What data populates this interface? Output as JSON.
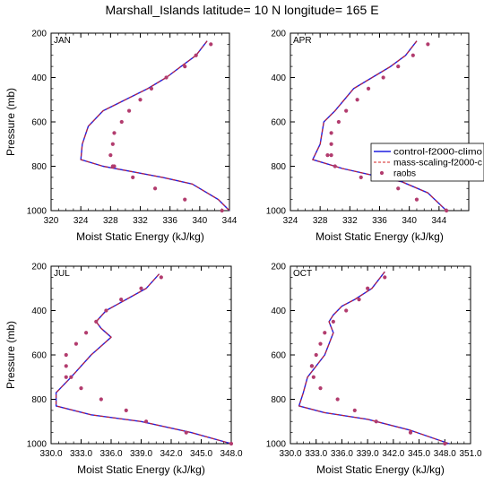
{
  "figure": {
    "title": "Marshall_Islands  latitude= 10 N longitude= 165 E",
    "xlabel": "Moist Static Energy (kJ/kg)",
    "ylabel": "Pressure (mb)",
    "colors": {
      "control": "#1f1fe0",
      "mass": "#d42020",
      "raobs": "#b23c6e"
    }
  },
  "legend": {
    "placement": "right of APR panel",
    "entries": [
      {
        "label": "control-f2000-climo",
        "style": "solid-line"
      },
      {
        "label": "mass-scaling-f2000-c",
        "style": "dashed-line"
      },
      {
        "label": "raobs",
        "style": "marker"
      }
    ]
  },
  "chart_data": [
    {
      "type": "line",
      "panel_label": "JAN",
      "xlim": [
        320,
        344
      ],
      "ylim": [
        1000,
        200
      ],
      "xticks": [
        320,
        324,
        328,
        332,
        336,
        340,
        344
      ],
      "xtick_labels": [
        "320",
        "324",
        "328",
        "332",
        "336",
        "340",
        "344"
      ],
      "yticks": [
        200,
        400,
        600,
        800,
        1000
      ],
      "ytick_labels": [
        "200",
        "400",
        "600",
        "800",
        "1000"
      ],
      "series": [
        {
          "name": "control-f2000-climo",
          "style": "line",
          "x": [
            341.0,
            339.5,
            337.5,
            335.5,
            333.0,
            330.0,
            327.0,
            325.0,
            324.2,
            324.0,
            327.0,
            331.0,
            335.0,
            339.0,
            342.5,
            344.0
          ],
          "y": [
            235,
            300,
            350,
            400,
            450,
            500,
            550,
            620,
            700,
            770,
            800,
            825,
            850,
            880,
            950,
            1000
          ]
        },
        {
          "name": "mass-scaling-f2000-c",
          "style": "dashed",
          "x": [
            341.0,
            339.5,
            337.5,
            335.5,
            333.0,
            330.0,
            327.0,
            325.0,
            324.2,
            324.0,
            327.0,
            331.0,
            335.0,
            339.0,
            342.5,
            344.0
          ],
          "y": [
            235,
            300,
            350,
            400,
            450,
            500,
            550,
            620,
            700,
            770,
            800,
            825,
            850,
            880,
            950,
            1000
          ]
        },
        {
          "name": "raobs",
          "style": "marker",
          "x": [
            341.5,
            339.5,
            338.0,
            335.5,
            333.5,
            332.0,
            330.5,
            329.5,
            328.5,
            328.3,
            328.0,
            328.3,
            328.5,
            331.0,
            334.0,
            338.0,
            343.0
          ],
          "y": [
            250,
            300,
            350,
            400,
            450,
            500,
            550,
            600,
            650,
            700,
            750,
            800,
            800,
            850,
            900,
            950,
            1000
          ]
        }
      ]
    },
    {
      "type": "line",
      "panel_label": "APR",
      "xlim": [
        324,
        348
      ],
      "ylim": [
        1000,
        200
      ],
      "xticks": [
        324,
        328,
        332,
        336,
        340,
        344,
        348
      ],
      "xtick_labels": [
        "324",
        "328",
        "332",
        "336",
        "340",
        "344",
        ""
      ],
      "yticks": [
        200,
        400,
        600,
        800,
        1000
      ],
      "ytick_labels": [
        "200",
        "400",
        "600",
        "800",
        "1000"
      ],
      "series": [
        {
          "name": "control-f2000-climo",
          "style": "line",
          "x": [
            341.0,
            339.5,
            337.5,
            335.0,
            332.5,
            330.0,
            328.5,
            328.0,
            327.0,
            331.0,
            335.0,
            339.0,
            342.5,
            345.0
          ],
          "y": [
            235,
            300,
            350,
            400,
            450,
            550,
            600,
            700,
            770,
            810,
            840,
            870,
            920,
            1000
          ]
        },
        {
          "name": "mass-scaling-f2000-c",
          "style": "dashed",
          "x": [
            341.0,
            339.5,
            337.5,
            335.0,
            332.5,
            330.0,
            328.5,
            328.0,
            327.0,
            331.0,
            335.0,
            339.0,
            342.5,
            345.0
          ],
          "y": [
            235,
            300,
            350,
            400,
            450,
            550,
            600,
            700,
            770,
            810,
            840,
            870,
            920,
            1000
          ]
        },
        {
          "name": "raobs",
          "style": "marker",
          "x": [
            342.5,
            340.5,
            338.5,
            336.5,
            334.5,
            333.0,
            331.5,
            330.5,
            329.5,
            329.5,
            329.0,
            329.5,
            330.0,
            333.5,
            338.5,
            341.0,
            345.0
          ],
          "y": [
            250,
            300,
            350,
            400,
            450,
            500,
            550,
            600,
            650,
            700,
            750,
            750,
            800,
            850,
            900,
            950,
            1000
          ]
        }
      ]
    },
    {
      "type": "line",
      "panel_label": "JUL",
      "xlim": [
        330,
        348
      ],
      "ylim": [
        1000,
        200
      ],
      "xticks": [
        330,
        333,
        336,
        339,
        342,
        345,
        348
      ],
      "xtick_labels": [
        "330.0",
        "333.0",
        "336.0",
        "339.0",
        "342.0",
        "345.0",
        "348.0"
      ],
      "yticks": [
        200,
        400,
        600,
        800,
        1000
      ],
      "ytick_labels": [
        "200",
        "400",
        "600",
        "800",
        "1000"
      ],
      "series": [
        {
          "name": "control-f2000-climo",
          "style": "line",
          "x": [
            340.8,
            339.5,
            337.5,
            335.5,
            334.5,
            335.0,
            336.0,
            334.0,
            332.0,
            330.5,
            330.5,
            334.0,
            339.0,
            344.0,
            348.0
          ],
          "y": [
            235,
            300,
            350,
            400,
            450,
            480,
            520,
            600,
            700,
            770,
            830,
            870,
            900,
            950,
            1000
          ]
        },
        {
          "name": "mass-scaling-f2000-c",
          "style": "dashed",
          "x": [
            340.8,
            339.5,
            337.5,
            335.5,
            334.5,
            335.0,
            336.0,
            334.0,
            332.0,
            330.5,
            330.5,
            334.0,
            339.0,
            344.0,
            348.0
          ],
          "y": [
            235,
            300,
            350,
            400,
            450,
            480,
            520,
            600,
            700,
            770,
            830,
            870,
            900,
            950,
            1000
          ]
        },
        {
          "name": "raobs",
          "style": "marker",
          "x": [
            341.0,
            339.0,
            337.0,
            335.5,
            334.5,
            333.5,
            332.5,
            331.5,
            331.5,
            331.5,
            332.0,
            333.0,
            335.0,
            337.5,
            339.5,
            343.5,
            348.0
          ],
          "y": [
            250,
            300,
            350,
            400,
            450,
            500,
            550,
            600,
            650,
            700,
            700,
            750,
            800,
            850,
            900,
            950,
            1000
          ]
        }
      ]
    },
    {
      "type": "line",
      "panel_label": "OCT",
      "xlim": [
        330,
        351
      ],
      "ylim": [
        1000,
        200
      ],
      "xticks": [
        330,
        333,
        336,
        339,
        342,
        345,
        348,
        351
      ],
      "xtick_labels": [
        "330.0",
        "333.0",
        "336.0",
        "339.0",
        "342.0",
        "345.0",
        "348.0",
        "351.0"
      ],
      "yticks": [
        200,
        400,
        600,
        800,
        1000
      ],
      "ytick_labels": [
        "200",
        "400",
        "600",
        "800",
        "1000"
      ],
      "series": [
        {
          "name": "control-f2000-climo",
          "style": "line",
          "x": [
            341.0,
            339.5,
            337.5,
            336.0,
            335.0,
            334.5,
            335.0,
            334.0,
            333.0,
            332.0,
            331.5,
            331.0,
            334.0,
            339.0,
            344.0,
            348.5
          ],
          "y": [
            225,
            300,
            350,
            380,
            420,
            450,
            500,
            600,
            650,
            700,
            770,
            830,
            860,
            890,
            940,
            1000
          ]
        },
        {
          "name": "mass-scaling-f2000-c",
          "style": "dashed",
          "x": [
            341.0,
            339.5,
            337.5,
            336.0,
            335.0,
            334.5,
            335.0,
            334.0,
            333.0,
            332.0,
            331.5,
            331.0,
            334.0,
            339.0,
            344.0,
            348.5
          ],
          "y": [
            225,
            300,
            350,
            380,
            420,
            450,
            500,
            600,
            650,
            700,
            770,
            830,
            860,
            890,
            940,
            1000
          ]
        },
        {
          "name": "raobs",
          "style": "marker",
          "x": [
            341.0,
            339.0,
            338.0,
            336.5,
            335.0,
            334.0,
            333.5,
            333.0,
            332.5,
            332.5,
            332.7,
            333.5,
            335.5,
            337.5,
            340.0,
            344.0,
            348.0
          ],
          "y": [
            250,
            300,
            350,
            400,
            450,
            500,
            550,
            600,
            650,
            650,
            700,
            750,
            800,
            850,
            900,
            950,
            1000
          ]
        }
      ]
    }
  ]
}
